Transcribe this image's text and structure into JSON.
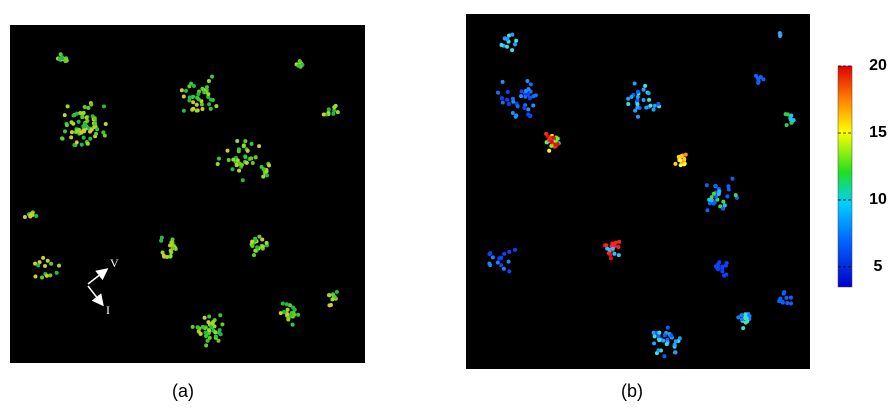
{
  "panels": [
    {
      "caption": "(a)",
      "annotations": [
        "V",
        "I"
      ]
    },
    {
      "caption": "(b)"
    }
  ],
  "colorbar": {
    "lim": [
      3.5,
      20
    ],
    "ticks": [
      5,
      10,
      15,
      20
    ]
  }
}
